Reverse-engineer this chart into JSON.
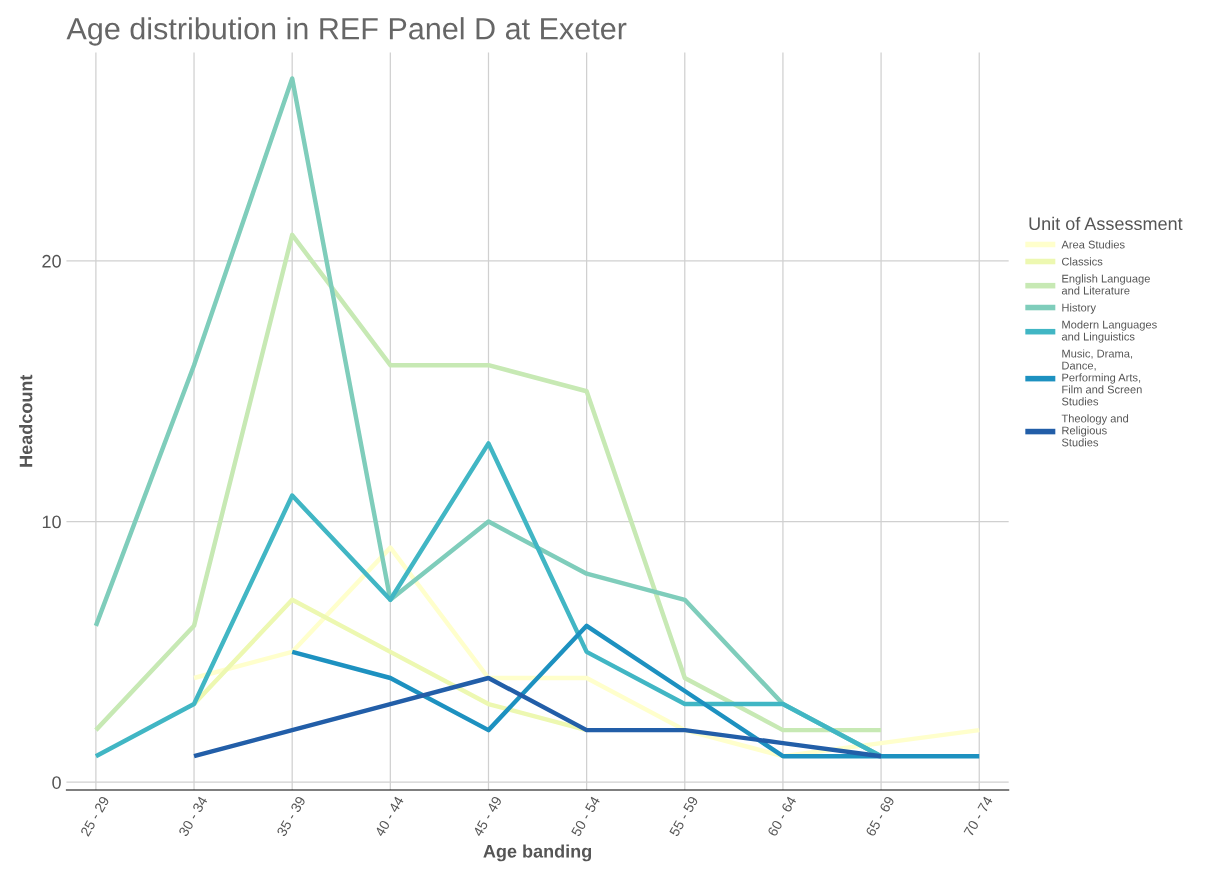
{
  "chart_data": {
    "type": "line",
    "title": "Age distribution in REF Panel D at Exeter",
    "xlabel": "Age banding",
    "ylabel": "Headcount",
    "legend_title": "Unit of Assessment",
    "categories": [
      "25 - 29",
      "30 - 34",
      "35 - 39",
      "40 - 44",
      "45 - 49",
      "50 - 54",
      "55 - 59",
      "60 - 64",
      "65 - 69",
      "70 - 74"
    ],
    "series": [
      {
        "name": "Area Studies",
        "color": "#ffffcc",
        "values": [
          null,
          4,
          5,
          9,
          4,
          4,
          2,
          1,
          1.5,
          2
        ]
      },
      {
        "name": "Classics",
        "color": "#edf8b1",
        "values": [
          null,
          3,
          7,
          5,
          3,
          2,
          null,
          null,
          null,
          null
        ]
      },
      {
        "name": "English Language and Literature",
        "color": "#c7e9b4",
        "values": [
          2,
          6,
          21,
          16,
          16,
          15,
          4,
          2,
          2,
          null
        ]
      },
      {
        "name": "History",
        "color": "#7fcdbb",
        "values": [
          6,
          16,
          27,
          7,
          10,
          8,
          7,
          3,
          1,
          null
        ]
      },
      {
        "name": "Modern Languages and Linguistics",
        "color": "#41b6c4",
        "values": [
          1,
          3,
          11,
          7,
          13,
          5,
          3,
          3,
          1,
          null
        ]
      },
      {
        "name": "Music, Drama, Dance, Performing Arts, Film and Screen Studies",
        "color": "#1d91c0",
        "values": [
          null,
          null,
          5,
          4,
          2,
          6,
          3.5,
          1,
          1,
          1
        ]
      },
      {
        "name": "Theology and Religious Studies",
        "color": "#225ea8",
        "values": [
          null,
          1,
          2,
          3,
          4,
          2,
          2,
          1.5,
          1,
          null
        ]
      }
    ],
    "ylim": [
      -0.3,
      28
    ],
    "yticks": [
      0,
      10,
      20
    ],
    "grid": true,
    "legend": "right",
    "line_style": "solid",
    "marker": "none"
  }
}
